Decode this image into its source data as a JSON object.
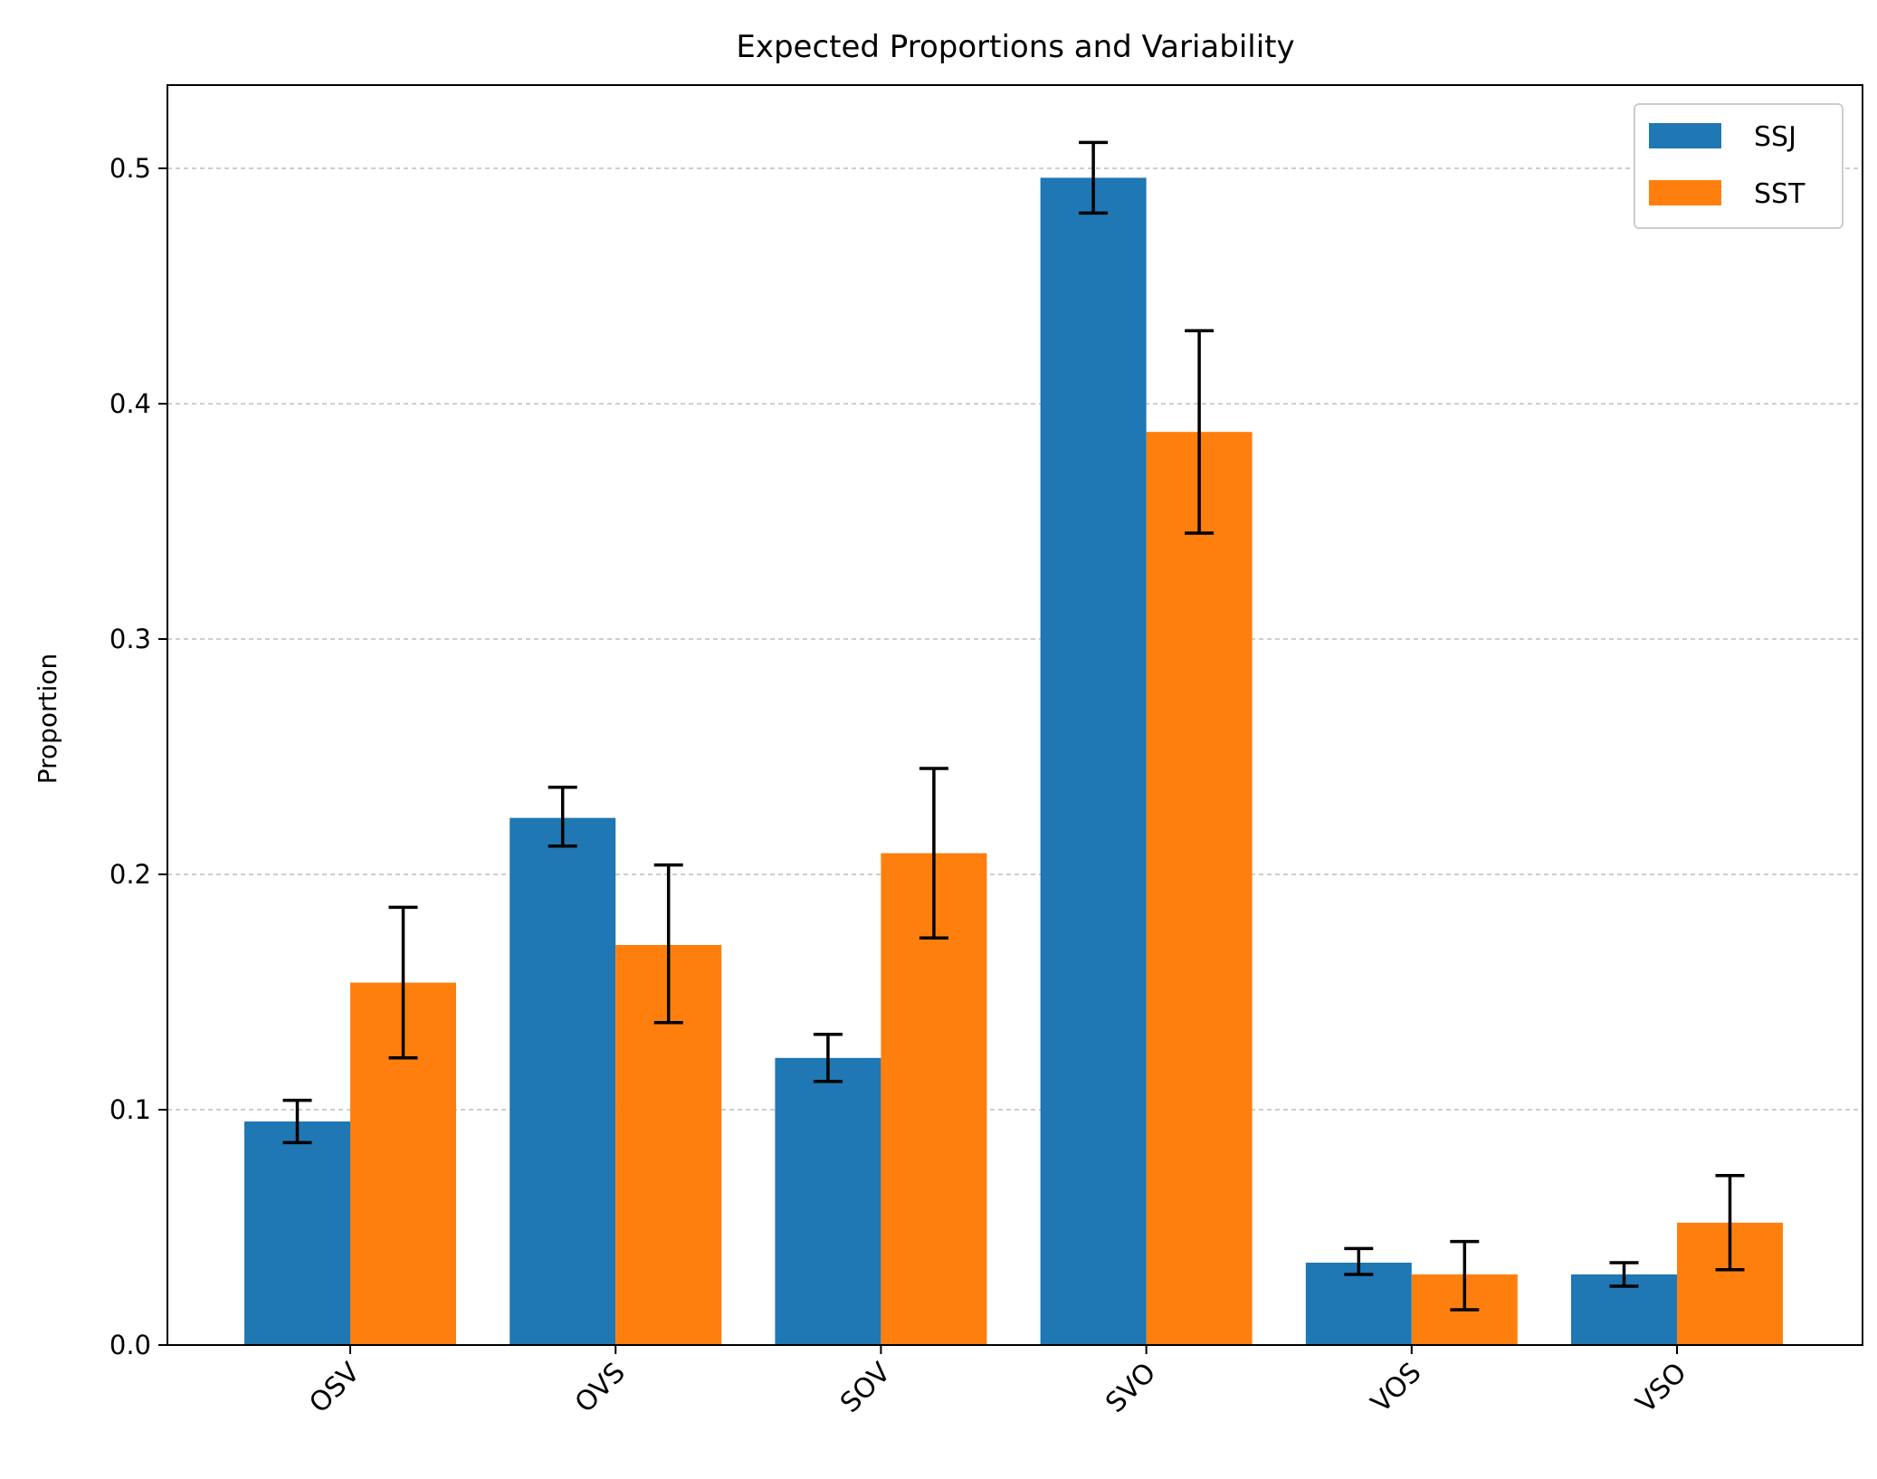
{
  "chart_data": {
    "type": "bar",
    "title": "Expected Proportions and Variability",
    "xlabel": "",
    "ylabel": "Proportion",
    "categories": [
      "OSV",
      "OVS",
      "SOV",
      "SVO",
      "VOS",
      "VSO"
    ],
    "series": [
      {
        "name": "SSJ",
        "color": "#1f77b4",
        "values": [
          0.095,
          0.224,
          0.122,
          0.496,
          0.035,
          0.03
        ],
        "error_low": [
          0.086,
          0.212,
          0.112,
          0.481,
          0.03,
          0.025
        ],
        "error_high": [
          0.104,
          0.237,
          0.132,
          0.511,
          0.041,
          0.035
        ]
      },
      {
        "name": "SST",
        "color": "#ff7f0e",
        "values": [
          0.154,
          0.17,
          0.209,
          0.388,
          0.03,
          0.052
        ],
        "error_low": [
          0.122,
          0.137,
          0.173,
          0.345,
          0.015,
          0.032
        ],
        "error_high": [
          0.186,
          0.204,
          0.245,
          0.431,
          0.044,
          0.072
        ]
      }
    ],
    "ylim": [
      0,
      0.536
    ],
    "yticks": [
      0.0,
      0.1,
      0.2,
      0.3,
      0.4,
      0.5
    ],
    "ytick_labels": [
      "0.0",
      "0.1",
      "0.2",
      "0.3",
      "0.4",
      "0.5"
    ],
    "xtick_rotation": 45,
    "grid": "y-dashed",
    "legend_position": "top-right"
  }
}
